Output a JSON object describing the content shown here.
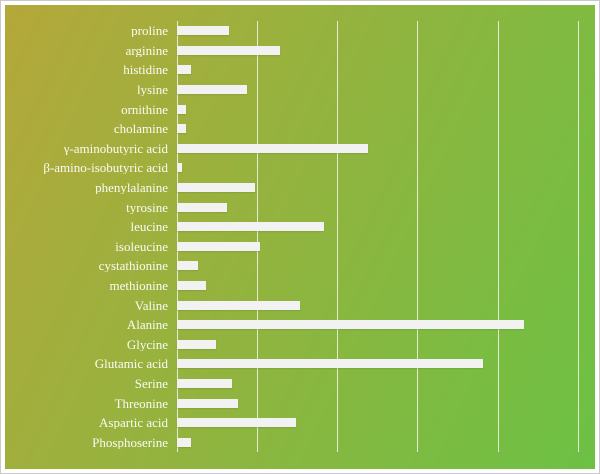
{
  "colors": {
    "frame_border": "#c9c9c9",
    "frame_background": "#ffffff",
    "background_gradient_start": "#b4a83a",
    "background_gradient_end": "#6cc144",
    "gridline": "rgba(242,244,236,0.85)",
    "bar": "#f2f2f2",
    "label_text": "#fbfbf5"
  },
  "chart_data": {
    "type": "bar",
    "orientation": "horizontal",
    "title": "",
    "xlabel": "",
    "ylabel": "",
    "grid": true,
    "legend": false,
    "axis_tick_labels_visible": false,
    "xlim": [
      0,
      5.19
    ],
    "gridline_interval": 1,
    "categories": [
      "proline",
      "arginine",
      "histidine",
      "lysine",
      "ornithine",
      "cholamine",
      "γ-aminobutyric acid",
      "β-amino-isobutyric acid",
      "phenylalanine",
      "tyrosine",
      "leucine",
      "isoleucine",
      "cystathionine",
      "methionine",
      "Valine",
      "Alanine",
      "Glycine",
      "Glutamic acid",
      "Serine",
      "Threonine",
      "Aspartic acid",
      "Phosphoserine"
    ],
    "values": [
      0.65,
      1.28,
      0.17,
      0.87,
      0.11,
      0.11,
      2.38,
      0.06,
      0.97,
      0.62,
      1.83,
      1.04,
      0.26,
      0.36,
      1.53,
      4.33,
      0.49,
      3.82,
      0.69,
      0.76,
      1.49,
      0.17
    ]
  }
}
